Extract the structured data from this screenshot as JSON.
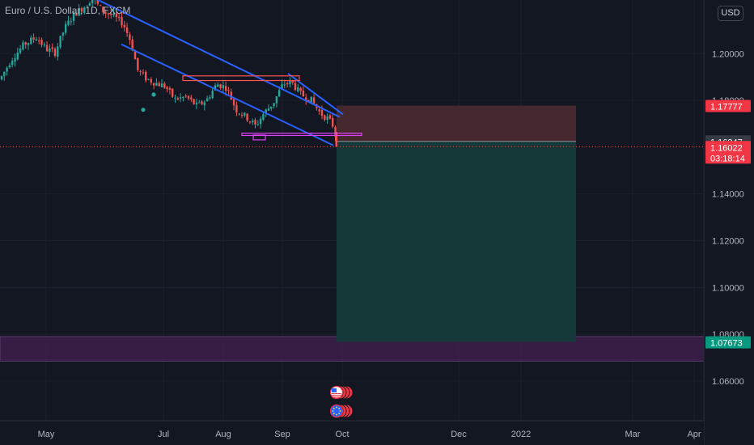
{
  "symbol": "Euro / U.S. Dollar, 1D, FXCM",
  "currency_button": "USD",
  "price_labels": {
    "stop": "1.17777",
    "prev": "1.16247",
    "last": "1.16022",
    "countdown": "03:18:14",
    "target": "1.07673"
  },
  "colors": {
    "background": "#131722",
    "grid": "#1c2030",
    "up": "#26a69a",
    "down": "#ef5350",
    "trendline": "#2962ff",
    "stop_zone": "#4a2a30",
    "target_zone": "#143a3a",
    "purple_zone": "#3d1f4a"
  },
  "chart_data": {
    "type": "candlestick",
    "x": [
      "2021-04-30",
      "2021-05-10",
      "2021-05-20",
      "2021-05-31",
      "2021-06-10",
      "2021-06-21",
      "2021-06-30",
      "2021-07-12",
      "2021-07-22",
      "2021-08-02",
      "2021-08-12",
      "2021-08-23",
      "2021-09-01",
      "2021-09-10",
      "2021-09-20",
      "2021-09-30"
    ],
    "close": [
      1.1995,
      1.208,
      1.2205,
      1.2225,
      1.217,
      1.19,
      1.1855,
      1.182,
      1.1775,
      1.187,
      1.1735,
      1.168,
      1.188,
      1.1815,
      1.173,
      1.1602
    ],
    "y_ticks": [
      "1.20000",
      "1.18000",
      "1.16000",
      "1.14000",
      "1.12000",
      "1.10000",
      "1.08000",
      "1.06000"
    ],
    "x_ticks": [
      "May",
      "Jul",
      "Aug",
      "Sep",
      "Oct",
      "Dec",
      "2022",
      "Mar",
      "Apr"
    ],
    "ylim": [
      1.045,
      1.222
    ],
    "position": {
      "entry": 1.16247,
      "stop": 1.17777,
      "target": 1.07673
    },
    "horizontal_zone": [
      1.0685,
      1.079
    ],
    "resistance_box": [
      1.1885,
      1.1905
    ],
    "support_box": [
      1.165,
      1.166
    ]
  }
}
